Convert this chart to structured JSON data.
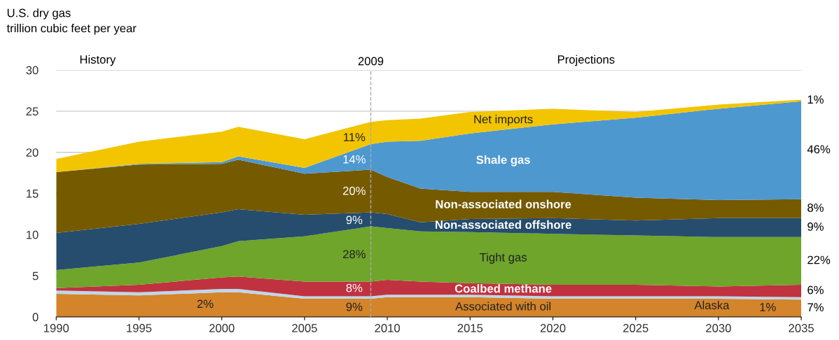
{
  "chart_data": {
    "type": "area",
    "stacked": true,
    "title": "U.S. dry gas",
    "subtitle": "trillion cubic feet per year",
    "x": [
      1990,
      1995,
      2000,
      2001,
      2005,
      2009,
      2010,
      2012,
      2015,
      2020,
      2025,
      2030,
      2035
    ],
    "series": [
      {
        "name": "Associated with oil",
        "color": "#d4842a",
        "values": [
          2.8,
          2.6,
          3.0,
          3.0,
          2.2,
          2.2,
          2.4,
          2.4,
          2.4,
          2.2,
          2.2,
          2.2,
          2.1
        ]
      },
      {
        "name": "Alaska",
        "color": "#bcd7ea",
        "values": [
          0.4,
          0.4,
          0.4,
          0.4,
          0.3,
          0.3,
          0.3,
          0.3,
          0.3,
          0.3,
          0.3,
          0.3,
          0.3
        ]
      },
      {
        "name": "Coalbed methane",
        "color": "#c0323f",
        "values": [
          0.3,
          0.9,
          1.4,
          1.5,
          1.8,
          1.8,
          1.8,
          1.6,
          1.4,
          1.4,
          1.4,
          1.2,
          1.5
        ]
      },
      {
        "name": "Tight gas",
        "color": "#6ea52a",
        "values": [
          2.2,
          2.7,
          3.8,
          4.3,
          5.5,
          6.7,
          6.3,
          6.1,
          6.2,
          6.2,
          6.0,
          6.0,
          5.8
        ]
      },
      {
        "name": "Non-associated offshore",
        "color": "#264d6e",
        "values": [
          4.5,
          4.7,
          4.1,
          3.9,
          2.6,
          1.7,
          1.7,
          1.1,
          1.6,
          1.9,
          1.8,
          2.3,
          2.3
        ]
      },
      {
        "name": "Non-associated onshore",
        "color": "#755a00",
        "values": [
          7.4,
          7.2,
          5.9,
          6.0,
          5.0,
          5.2,
          4.5,
          4.1,
          3.3,
          3.2,
          2.8,
          2.2,
          2.3
        ]
      },
      {
        "name": "Shale gas",
        "color": "#4e98d0",
        "values": [
          0.0,
          0.1,
          0.2,
          0.4,
          0.7,
          3.1,
          4.3,
          5.8,
          7.1,
          8.2,
          9.7,
          11.1,
          11.9
        ]
      },
      {
        "name": "Net imports",
        "color": "#f2c500",
        "values": [
          1.6,
          2.7,
          3.7,
          3.6,
          3.5,
          2.7,
          2.6,
          2.7,
          2.6,
          1.9,
          0.7,
          0.5,
          0.2
        ]
      }
    ],
    "xlim": [
      1990,
      2035
    ],
    "xticks": [
      1990,
      1995,
      2000,
      2005,
      2010,
      2015,
      2020,
      2025,
      2030,
      2035
    ],
    "ylim": [
      0,
      30
    ],
    "yticks": [
      0,
      5,
      10,
      15,
      20,
      25,
      30
    ],
    "grid": "y",
    "ref_lines": [
      {
        "axis": "x",
        "value": 2009,
        "label": "2009",
        "color": "#aaaaaa",
        "line_style": "dashed"
      }
    ],
    "annotations": [
      "History",
      "Projections",
      "11%",
      "14%",
      "20%",
      "9%",
      "28%",
      "8%",
      "2%",
      "9%",
      "1%",
      "46%",
      "8%",
      "9%",
      "22%",
      "6%",
      "1%",
      "7%"
    ]
  }
}
